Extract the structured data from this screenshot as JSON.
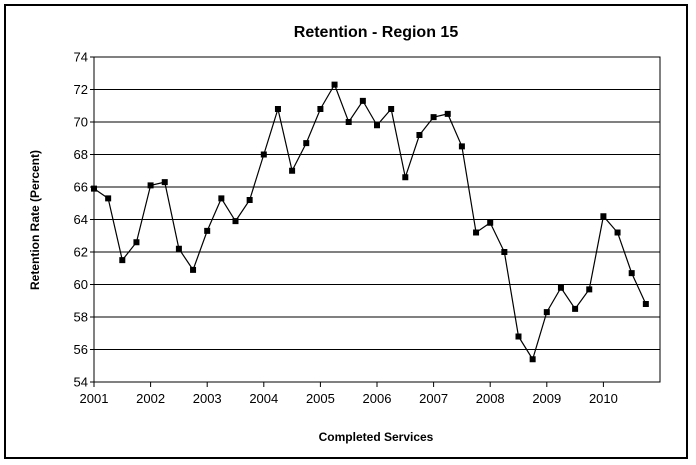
{
  "chart_data": {
    "type": "line",
    "title": "Retention - Region 15",
    "xlabel": "Completed Services",
    "ylabel": "Retention Rate (Percent)",
    "ylim": [
      54,
      74
    ],
    "yticks": [
      54,
      56,
      58,
      60,
      62,
      64,
      66,
      68,
      70,
      72,
      74
    ],
    "xlim": [
      2001,
      2011
    ],
    "xticks": [
      2001,
      2002,
      2003,
      2004,
      2005,
      2006,
      2007,
      2008,
      2009,
      2010
    ],
    "grid": true,
    "legend": "none",
    "colors": {
      "line": "#000000",
      "marker": "#000000",
      "grid": "#000000"
    },
    "series": [
      {
        "x": [
          2001.0,
          2001.25,
          2001.5,
          2001.75,
          2002.0,
          2002.25,
          2002.5,
          2002.75,
          2003.0,
          2003.25,
          2003.5,
          2003.75,
          2004.0,
          2004.25,
          2004.5,
          2004.75,
          2005.0,
          2005.25,
          2005.5,
          2005.75,
          2006.0,
          2006.25,
          2006.5,
          2006.75,
          2007.0,
          2007.25,
          2007.5,
          2007.75,
          2008.0,
          2008.25,
          2008.5,
          2008.75,
          2009.0,
          2009.25,
          2009.5,
          2009.75,
          2010.0,
          2010.25,
          2010.5,
          2010.75
        ],
        "values": [
          65.9,
          65.3,
          61.5,
          62.6,
          66.1,
          66.3,
          62.2,
          60.9,
          63.3,
          65.3,
          63.9,
          65.2,
          68.0,
          70.8,
          67.0,
          68.7,
          70.8,
          72.3,
          70.0,
          71.3,
          69.8,
          70.8,
          66.6,
          69.2,
          70.3,
          70.5,
          68.5,
          63.2,
          63.8,
          62.0,
          56.8,
          55.4,
          58.3,
          59.8,
          58.5,
          59.7,
          64.2,
          63.2,
          60.7,
          58.8
        ]
      }
    ]
  }
}
